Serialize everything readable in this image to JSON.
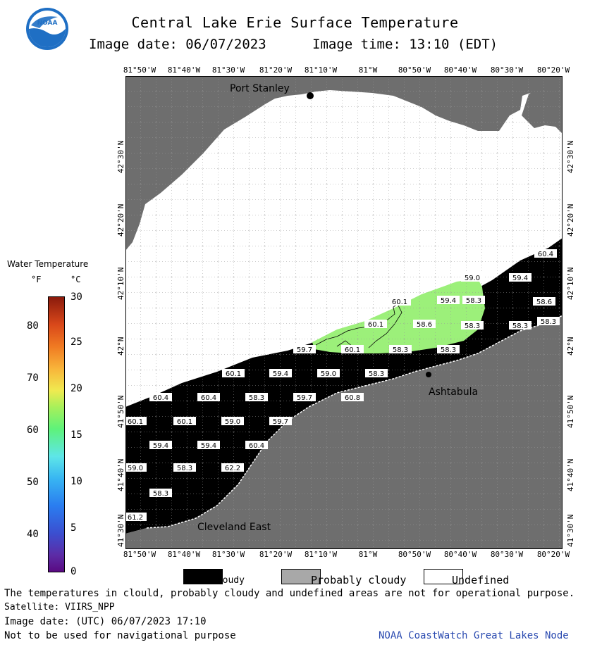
{
  "header": {
    "title": "Central Lake Erie Surface Temperature",
    "image_date": "Image date: 06/07/2023",
    "image_time": "Image time: 13:10 (EDT)"
  },
  "logo": {
    "text": "NOAA"
  },
  "axes": {
    "lon_labels": [
      "81°50'W",
      "81°40'W",
      "81°30'W",
      "81°20'W",
      "81°10'W",
      "81°W",
      "80°50'W",
      "80°40'W",
      "80°30'W",
      "80°20'W"
    ],
    "lat_labels_left": [
      "42°30'N",
      "42°20'N",
      "42°10'N",
      "42°N",
      "41°50'N",
      "41°40'N",
      "41°30'N"
    ],
    "lat_labels_right": [
      "42°30'N",
      "42°20'N",
      "42°10'N",
      "42°N",
      "41°50'N",
      "41°40'N",
      "41°30'N"
    ]
  },
  "places": {
    "port_stanley": "Port Stanley",
    "ashtabula": "Ashtabula",
    "cleveland_east": "Cleveland East"
  },
  "temperature_readings": [
    "60.4",
    "59.0",
    "59.4",
    "58.3",
    "58.6",
    "60.1",
    "59.4",
    "58.3",
    "60.1",
    "58.6",
    "58.3",
    "58.3",
    "59.7",
    "60.1",
    "58.3",
    "58.3",
    "60.1",
    "59.4",
    "59.0",
    "58.3",
    "60.4",
    "60.4",
    "58.3",
    "59.7",
    "60.8",
    "60.1",
    "60.1",
    "59.0",
    "59.7",
    "59.4",
    "59.4",
    "60.4",
    "59.0",
    "58.3",
    "62.2",
    "58.3",
    "61.2"
  ],
  "legend": {
    "title": "Water Temperature",
    "unit_f": "°F",
    "unit_c": "°C",
    "f_ticks": [
      "80",
      "70",
      "60",
      "50",
      "40"
    ],
    "c_ticks": [
      "30",
      "25",
      "20",
      "15",
      "10",
      "5",
      "0"
    ]
  },
  "key": {
    "cloudy": "Cloudy",
    "probably_cloudy": "Probably cloudy",
    "undefined": "Undefined"
  },
  "footer": {
    "disclaimer": "The temperatures in clould, probably cloudy and undefined areas are not for operational purpose.",
    "satellite": "Satellite: VIIRS_NPP",
    "utc_date": "Image date: (UTC) 06/07/2023  17:10",
    "nav_warning": "Not to be used for navigational purpose",
    "credit": "NOAA CoastWatch Great Lakes Node"
  },
  "colors": {
    "land": "#6e6e6e",
    "land_light": "#a0a0a0",
    "cloud": "#000000",
    "undefined": "#ffffff",
    "water_green": "#9cf07a",
    "credit_blue": "#2a4ab0"
  }
}
